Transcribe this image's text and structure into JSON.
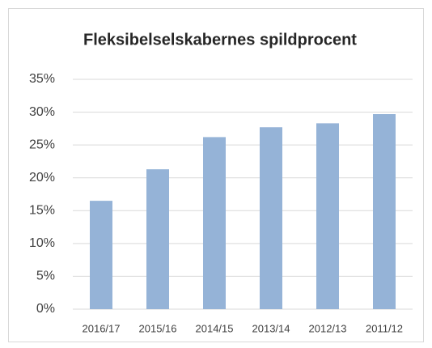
{
  "chart_data": {
    "type": "bar",
    "title": "Fleksibelselskabernes spildprocent",
    "categories": [
      "2016/17",
      "2015/16",
      "2014/15",
      "2013/14",
      "2012/13",
      "2011/12"
    ],
    "values": [
      16.5,
      21.3,
      26.2,
      27.7,
      28.3,
      29.7
    ],
    "color": "#95b3d7",
    "ylim": [
      0,
      35
    ],
    "yticks": [
      {
        "value": 0,
        "label": "0%"
      },
      {
        "value": 5,
        "label": "5%"
      },
      {
        "value": 10,
        "label": "10%"
      },
      {
        "value": 15,
        "label": "15%"
      },
      {
        "value": 20,
        "label": "20%"
      },
      {
        "value": 25,
        "label": "25%"
      },
      {
        "value": 30,
        "label": "30%"
      },
      {
        "value": 35,
        "label": "35%"
      }
    ],
    "grid": true
  }
}
